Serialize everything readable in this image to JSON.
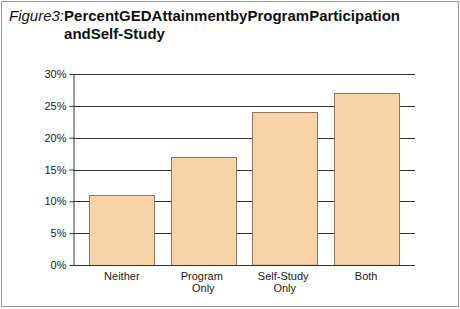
{
  "chart_data": {
    "type": "bar",
    "title": "Figure 3: Percent GED Attainment by Program Participation and Self-Study",
    "categories": [
      "Neither",
      "Program Only",
      "Self-Study Only",
      "Both"
    ],
    "values": [
      11,
      17,
      24,
      27
    ],
    "color": "#f8d3a8",
    "ylim": [
      0,
      30
    ],
    "yticks": [
      {
        "value": 0,
        "label": "0%"
      },
      {
        "value": 5,
        "label": "5%"
      },
      {
        "value": 10,
        "label": "10%"
      },
      {
        "value": 15,
        "label": "15%"
      },
      {
        "value": 20,
        "label": "20%"
      },
      {
        "value": 25,
        "label": "25%"
      },
      {
        "value": 30,
        "label": "30%"
      }
    ],
    "grid": true
  }
}
